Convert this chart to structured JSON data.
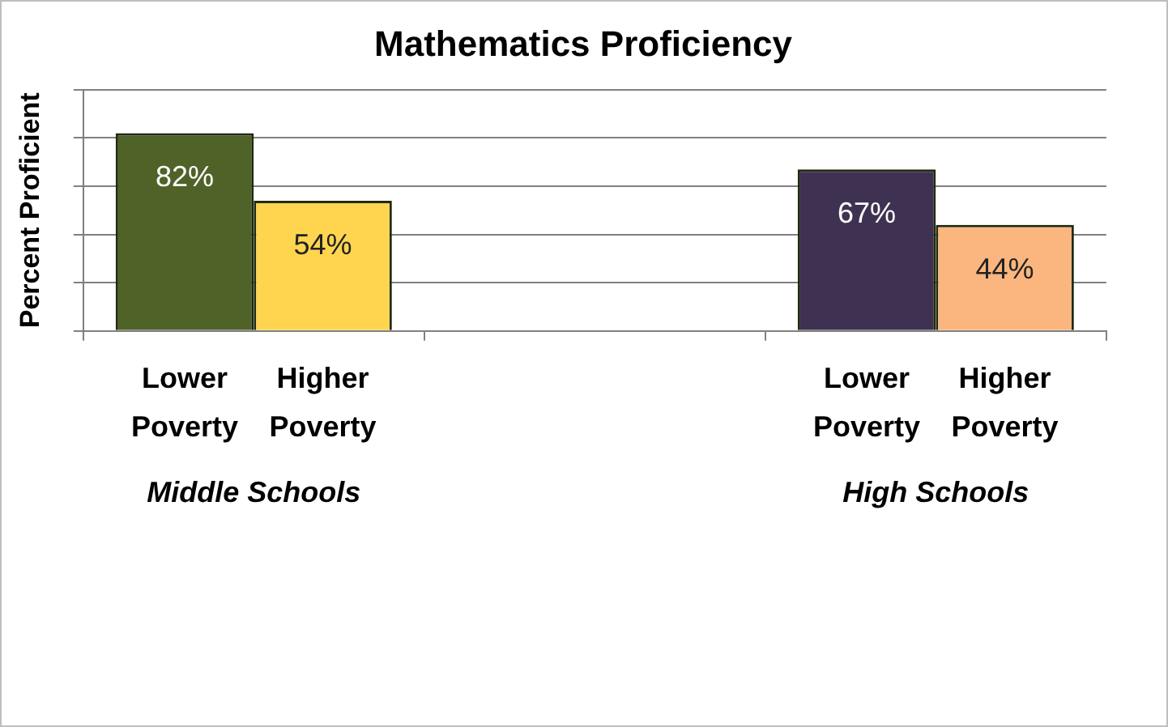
{
  "chart_data": {
    "type": "bar",
    "title": "Mathematics Proficiency",
    "ylabel": "Percent Proficient",
    "categories": [
      "Middle Schools",
      null,
      "High Schools"
    ],
    "series": [
      {
        "name": "Lower Poverty",
        "colors": [
          "#4f6228",
          "#ffffff",
          "#3f3151"
        ],
        "values": [
          82,
          null,
          67
        ],
        "value_labels": [
          "82%",
          null,
          "67%"
        ]
      },
      {
        "name": "Higher Poverty",
        "colors": [
          "#ffd550",
          "#ffffff",
          "#fab67e"
        ],
        "values": [
          54,
          null,
          44
        ],
        "value_labels": [
          "54%",
          null,
          "44%"
        ]
      }
    ],
    "ylim": [
      0,
      100
    ],
    "tick_labels": "x",
    "grid": "y",
    "legend": false
  }
}
